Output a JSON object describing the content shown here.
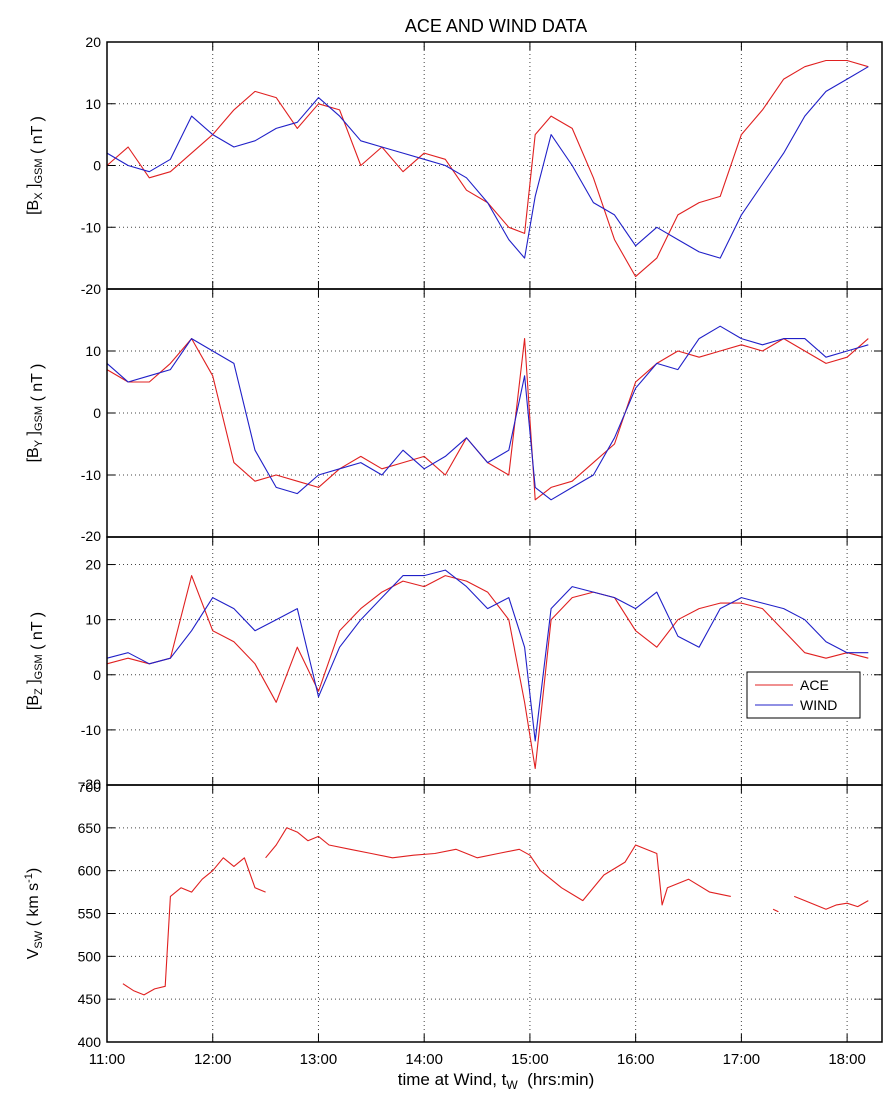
{
  "chart_data": {
    "type": "line",
    "title": "ACE AND WIND DATA",
    "xlabel": "time at Wind, t",
    "xlabel_sub": "W",
    "xlabel_units": "  (hrs:min)",
    "x_ticks": [
      "11:00",
      "12:00",
      "13:00",
      "14:00",
      "15:00",
      "16:00",
      "17:00",
      "18:00"
    ],
    "xlim_hours": [
      11.0,
      18.33
    ],
    "grid": true,
    "legend": {
      "position": "inside-right of third panel",
      "entries": [
        "ACE",
        "WIND"
      ]
    },
    "colors": {
      "ACE": "#e02020",
      "WIND": "#2020c8"
    },
    "panels": [
      {
        "id": "bx",
        "ylabel": {
          "pre": "[B",
          "sub1": "X",
          "mid": " ]",
          "sub2": "GSM",
          "post": " ( nT )"
        },
        "ylim": [
          -20,
          20
        ],
        "y_ticks": [
          "-20",
          "-10",
          "0",
          "10",
          "20"
        ],
        "series": [
          {
            "name": "ACE",
            "x": [
              11.0,
              11.2,
              11.4,
              11.6,
              11.8,
              12.0,
              12.2,
              12.4,
              12.6,
              12.8,
              13.0,
              13.2,
              13.4,
              13.6,
              13.8,
              14.0,
              14.2,
              14.4,
              14.6,
              14.8,
              14.95,
              15.05,
              15.2,
              15.4,
              15.6,
              15.8,
              16.0,
              16.2,
              16.4,
              16.6,
              16.8,
              17.0,
              17.2,
              17.4,
              17.6,
              17.8,
              18.0,
              18.2
            ],
            "y": [
              0,
              3,
              -2,
              -1,
              2,
              5,
              9,
              12,
              11,
              6,
              10,
              9,
              0,
              3,
              -1,
              2,
              1,
              -4,
              -6,
              -10,
              -11,
              5,
              8,
              6,
              -2,
              -12,
              -18,
              -15,
              -8,
              -6,
              -5,
              5,
              9,
              14,
              16,
              17,
              17,
              16
            ]
          },
          {
            "name": "WIND",
            "x": [
              11.0,
              11.2,
              11.4,
              11.6,
              11.8,
              12.0,
              12.2,
              12.4,
              12.6,
              12.8,
              13.0,
              13.2,
              13.4,
              13.6,
              13.8,
              14.0,
              14.2,
              14.4,
              14.6,
              14.8,
              14.95,
              15.05,
              15.2,
              15.4,
              15.6,
              15.8,
              16.0,
              16.2,
              16.4,
              16.6,
              16.8,
              17.0,
              17.2,
              17.4,
              17.6,
              17.8,
              18.0,
              18.2
            ],
            "y": [
              2,
              0,
              -1,
              1,
              8,
              5,
              3,
              4,
              6,
              7,
              11,
              8,
              4,
              3,
              2,
              1,
              0,
              -2,
              -6,
              -12,
              -15,
              -5,
              5,
              0,
              -6,
              -8,
              -13,
              -10,
              -12,
              -14,
              -15,
              -8,
              -3,
              2,
              8,
              12,
              14,
              16
            ]
          }
        ]
      },
      {
        "id": "by",
        "ylabel": {
          "pre": "[B",
          "sub1": "Y",
          "mid": " ]",
          "sub2": "GSM",
          "post": " ( nT )"
        },
        "ylim": [
          -20,
          20
        ],
        "y_ticks": [
          "-10",
          "0",
          "10"
        ],
        "bottom_tick_overlap": "-20",
        "series": [
          {
            "name": "ACE",
            "x": [
              11.0,
              11.2,
              11.4,
              11.6,
              11.8,
              12.0,
              12.2,
              12.4,
              12.6,
              12.8,
              13.0,
              13.2,
              13.4,
              13.6,
              13.8,
              14.0,
              14.2,
              14.4,
              14.6,
              14.8,
              14.95,
              15.05,
              15.2,
              15.4,
              15.6,
              15.8,
              16.0,
              16.2,
              16.4,
              16.6,
              16.8,
              17.0,
              17.2,
              17.4,
              17.6,
              17.8,
              18.0,
              18.2
            ],
            "y": [
              7,
              5,
              5,
              8,
              12,
              6,
              -8,
              -11,
              -10,
              -11,
              -12,
              -9,
              -7,
              -9,
              -8,
              -7,
              -10,
              -4,
              -8,
              -10,
              12,
              -14,
              -12,
              -11,
              -8,
              -5,
              5,
              8,
              10,
              9,
              10,
              11,
              10,
              12,
              10,
              8,
              9,
              12
            ]
          },
          {
            "name": "WIND",
            "x": [
              11.0,
              11.2,
              11.4,
              11.6,
              11.8,
              12.0,
              12.2,
              12.4,
              12.6,
              12.8,
              13.0,
              13.2,
              13.4,
              13.6,
              13.8,
              14.0,
              14.2,
              14.4,
              14.6,
              14.8,
              14.95,
              15.05,
              15.2,
              15.4,
              15.6,
              15.8,
              16.0,
              16.2,
              16.4,
              16.6,
              16.8,
              17.0,
              17.2,
              17.4,
              17.6,
              17.8,
              18.0,
              18.2
            ],
            "y": [
              8,
              5,
              6,
              7,
              12,
              10,
              8,
              -6,
              -12,
              -13,
              -10,
              -9,
              -8,
              -10,
              -6,
              -9,
              -7,
              -4,
              -8,
              -6,
              6,
              -12,
              -14,
              -12,
              -10,
              -4,
              4,
              8,
              7,
              12,
              14,
              12,
              11,
              12,
              12,
              9,
              10,
              11
            ]
          }
        ]
      },
      {
        "id": "bz",
        "ylabel": {
          "pre": "[B",
          "sub1": "Z",
          "mid": " ]",
          "sub2": "GSM",
          "post": " ( nT )"
        },
        "ylim": [
          -20,
          25
        ],
        "y_ticks": [
          "-10",
          "0",
          "10",
          "20"
        ],
        "bottom_tick_overlap": "-20",
        "series": [
          {
            "name": "ACE",
            "x": [
              11.0,
              11.2,
              11.4,
              11.6,
              11.8,
              12.0,
              12.2,
              12.4,
              12.6,
              12.8,
              13.0,
              13.2,
              13.4,
              13.6,
              13.8,
              14.0,
              14.2,
              14.4,
              14.6,
              14.8,
              14.95,
              15.05,
              15.2,
              15.4,
              15.6,
              15.8,
              16.0,
              16.2,
              16.4,
              16.6,
              16.8,
              17.0,
              17.2,
              17.4,
              17.6,
              17.8,
              18.0,
              18.2
            ],
            "y": [
              2,
              3,
              2,
              3,
              18,
              8,
              6,
              2,
              -5,
              5,
              -3,
              8,
              12,
              15,
              17,
              16,
              18,
              17,
              15,
              10,
              -5,
              -17,
              10,
              14,
              15,
              14,
              8,
              5,
              10,
              12,
              13,
              13,
              12,
              8,
              4,
              3,
              4,
              3
            ]
          },
          {
            "name": "WIND",
            "x": [
              11.0,
              11.2,
              11.4,
              11.6,
              11.8,
              12.0,
              12.2,
              12.4,
              12.6,
              12.8,
              13.0,
              13.2,
              13.4,
              13.6,
              13.8,
              14.0,
              14.2,
              14.4,
              14.6,
              14.8,
              14.95,
              15.05,
              15.2,
              15.4,
              15.6,
              15.8,
              16.0,
              16.2,
              16.4,
              16.6,
              16.8,
              17.0,
              17.2,
              17.4,
              17.6,
              17.8,
              18.0,
              18.2
            ],
            "y": [
              3,
              4,
              2,
              3,
              8,
              14,
              12,
              8,
              10,
              12,
              -4,
              5,
              10,
              14,
              18,
              18,
              19,
              16,
              12,
              14,
              5,
              -12,
              12,
              16,
              15,
              14,
              12,
              15,
              7,
              5,
              12,
              14,
              13,
              12,
              10,
              6,
              4,
              4
            ]
          }
        ]
      },
      {
        "id": "vsw",
        "ylabel": {
          "pre": "V",
          "sub1": "SW",
          "mid": " ( km s",
          "sup": "-1",
          "post": ")"
        },
        "ylim": [
          400,
          700
        ],
        "y_ticks": [
          "400",
          "450",
          "500",
          "550",
          "600",
          "650"
        ],
        "top_tick_overlap": "700",
        "series": [
          {
            "name": "ACE",
            "segments": [
              {
                "x": [
                  11.15,
                  11.25,
                  11.35,
                  11.45,
                  11.55,
                  11.6,
                  11.7,
                  11.8,
                  11.9,
                  12.0,
                  12.1,
                  12.2,
                  12.3,
                  12.4,
                  12.5
                ],
                "y": [
                  468,
                  460,
                  455,
                  462,
                  465,
                  570,
                  580,
                  575,
                  590,
                  600,
                  615,
                  605,
                  615,
                  580,
                  575
                ]
              },
              {
                "x": [
                  12.5,
                  12.6,
                  12.7,
                  12.8,
                  12.9,
                  13.0,
                  13.1,
                  13.3,
                  13.5,
                  13.7,
                  13.9,
                  14.1,
                  14.3,
                  14.5,
                  14.7,
                  14.9,
                  15.0,
                  15.1,
                  15.3,
                  15.5,
                  15.7,
                  15.9,
                  16.0,
                  16.1,
                  16.2,
                  16.25,
                  16.3,
                  16.5,
                  16.7,
                  16.9
                ],
                "y": [
                  615,
                  630,
                  650,
                  645,
                  635,
                  640,
                  630,
                  625,
                  620,
                  615,
                  618,
                  620,
                  625,
                  615,
                  620,
                  625,
                  618,
                  600,
                  580,
                  565,
                  595,
                  610,
                  630,
                  625,
                  620,
                  560,
                  580,
                  590,
                  575,
                  570
                ]
              },
              {
                "x": [
                  17.3,
                  17.35
                ],
                "y": [
                  555,
                  552
                ]
              },
              {
                "x": [
                  17.5,
                  17.6,
                  17.8,
                  17.9,
                  18.0,
                  18.1,
                  18.2
                ],
                "y": [
                  570,
                  565,
                  555,
                  560,
                  562,
                  558,
                  565
                ]
              }
            ]
          }
        ]
      }
    ]
  }
}
